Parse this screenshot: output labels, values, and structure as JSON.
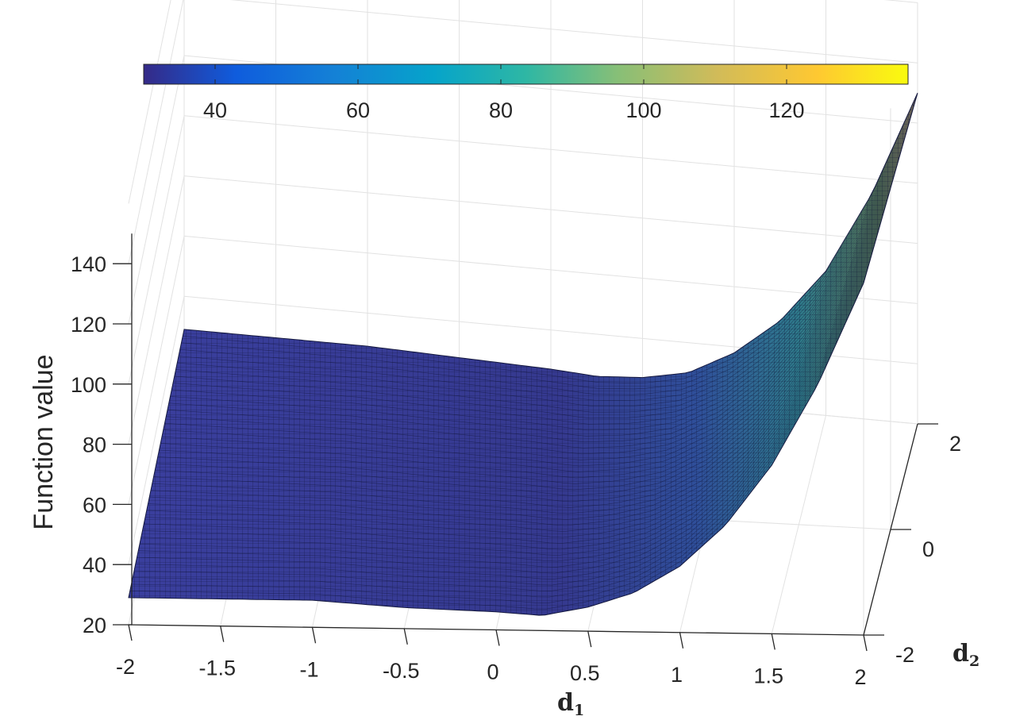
{
  "chart_data": {
    "type": "surface",
    "title": "",
    "xlabel": "d",
    "xlabel_sub": "1",
    "ylabel": "d",
    "ylabel_sub": "2",
    "zlabel": "Function value",
    "xlim": [
      -2,
      2
    ],
    "ylim": [
      -2,
      2
    ],
    "zlim": [
      20,
      150
    ],
    "x_ticks": [
      "-2",
      "-1.5",
      "-1",
      "-0.5",
      "0",
      "0.5",
      "1",
      "1.5",
      "2"
    ],
    "y_ticks": [
      "-2",
      "0",
      "2"
    ],
    "z_ticks": [
      "20",
      "40",
      "60",
      "80",
      "100",
      "120",
      "140"
    ],
    "grid": true,
    "colormap": "parula",
    "colorbar": {
      "location": "top",
      "range": [
        30,
        137
      ],
      "ticks": [
        "40",
        "60",
        "80",
        "100",
        "120"
      ]
    },
    "surface_profile": {
      "x": [
        -2,
        -1.5,
        -1,
        -0.5,
        0,
        0.25,
        0.5,
        0.75,
        1,
        1.25,
        1.5,
        1.75,
        2
      ],
      "z_at_d2_min": [
        29,
        29,
        29,
        27,
        26,
        25,
        28,
        33,
        42,
        56,
        76,
        103,
        137
      ],
      "z_at_d2_max": [
        29,
        29,
        29,
        28,
        27,
        26,
        27,
        30,
        38,
        50,
        68,
        95,
        130
      ]
    }
  }
}
